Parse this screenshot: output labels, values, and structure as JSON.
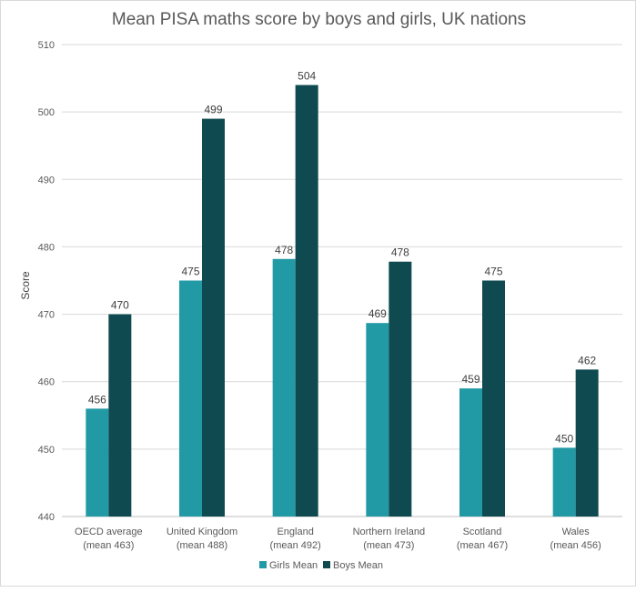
{
  "chart_data": {
    "type": "bar",
    "title": "Mean PISA maths score by boys and girls, UK nations",
    "xlabel": "",
    "ylabel": "Score",
    "ylim": [
      440,
      510
    ],
    "yticks": [
      440,
      450,
      460,
      470,
      480,
      490,
      500,
      510
    ],
    "grid": true,
    "legend_position": "bottom",
    "categories": [
      [
        "OECD average",
        "(mean 463)"
      ],
      [
        "United Kingdom",
        "(mean 488)"
      ],
      [
        "England",
        "(mean 492)"
      ],
      [
        "Northern Ireland",
        "(mean 473)"
      ],
      [
        "Scotland",
        "(mean 467)"
      ],
      [
        "Wales",
        "(mean 456)"
      ]
    ],
    "series": [
      {
        "name": "Girls Mean",
        "color": "#229aa5",
        "values": [
          456,
          475,
          478.2,
          468.7,
          459,
          450.2
        ],
        "labels": [
          "456",
          "475",
          "478",
          "469",
          "459",
          "450"
        ]
      },
      {
        "name": "Boys Mean",
        "color": "#0f4a50",
        "values": [
          470,
          499,
          504,
          477.8,
          475,
          461.8
        ],
        "labels": [
          "470",
          "499",
          "504",
          "478",
          "475",
          "462"
        ]
      }
    ]
  }
}
